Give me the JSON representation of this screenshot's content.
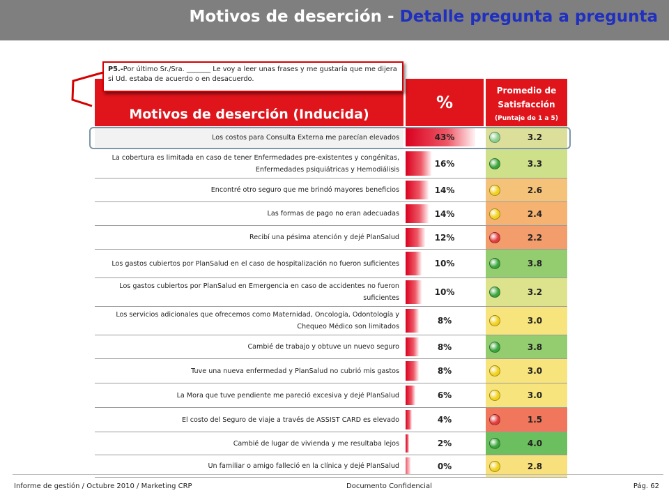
{
  "title": {
    "main": "Motivos de deserción",
    "separator": " - ",
    "sub": "Detalle pregunta a pregunta"
  },
  "callout": {
    "code": "P5.-",
    "text": "Por último Sr./Sra. _______ Le voy a leer unas frases y me gustaría que me dijera si Ud. estaba de acuerdo o en desacuerdo."
  },
  "table": {
    "header_label": "Motivos de deserción (Inducida)",
    "header_pct": "%",
    "header_avg": "Promedio de Satisfacción",
    "header_avg_scale": "(Puntaje de 1 a 5)"
  },
  "colors": {
    "header": "#e0141b",
    "light_green": "#cfe09a",
    "mid_green": "#dcdf8c",
    "green": "#8fcc6e",
    "orange": "#f5b66e",
    "salmon": "#f39b6b",
    "red": "#f0765c",
    "yellow": "#f8e27b",
    "dot_green": "#3aa53a",
    "dot_yellow": "#f1d11c",
    "dot_red": "#e23b3b",
    "dot_light_green": "#8ccf8c"
  },
  "chart_data": {
    "type": "table",
    "rows": [
      {
        "label": "Los costos para Consulta Externa me parecían elevados",
        "pct": "43%",
        "pct_value": 43,
        "avg": "3.2",
        "bg": "#dcdf9a",
        "dot": "#8ccf8c",
        "dot_icon": "light-green-circle-icon",
        "height": 33
      },
      {
        "label": "La cobertura es limitada en caso de tener Enfermedades pre-existentes y congénitas, Enfermedades psiquiátricas y Hemodiálisis",
        "pct": "16%",
        "pct_value": 16,
        "avg": "3.3",
        "bg": "#cfe08a",
        "dot": "#3aa53a",
        "dot_icon": "green-circle-icon",
        "height": 42
      },
      {
        "label": "Encontré otro seguro que me brindó mayores beneficios",
        "pct": "14%",
        "pct_value": 14,
        "avg": "2.6",
        "bg": "#f5c27a",
        "dot": "#f1d11c",
        "dot_icon": "yellow-circle-icon",
        "height": 34
      },
      {
        "label": "Las formas de pago no eran adecuadas",
        "pct": "14%",
        "pct_value": 14,
        "avg": "2.4",
        "bg": "#f5b271",
        "dot": "#f1d11c",
        "dot_icon": "yellow-circle-icon",
        "height": 34
      },
      {
        "label": "Recibí una pésima atención y dejé PlanSalud",
        "pct": "12%",
        "pct_value": 12,
        "avg": "2.2",
        "bg": "#f39c6c",
        "dot": "#e23b3b",
        "dot_icon": "red-circle-icon",
        "height": 34
      },
      {
        "label": "Los gastos cubiertos por PlanSalud en el caso de hospitalización no fueron suficientes",
        "pct": "10%",
        "pct_value": 10,
        "avg": "3.8",
        "bg": "#93cd6f",
        "dot": "#3aa53a",
        "dot_icon": "green-circle-icon",
        "height": 41
      },
      {
        "label": "Los gastos cubiertos por PlanSalud en Emergencia en caso de accidentes no fueron suficientes",
        "pct": "10%",
        "pct_value": 10,
        "avg": "3.2",
        "bg": "#dde28d",
        "dot": "#3aa53a",
        "dot_icon": "green-circle-icon",
        "height": 41
      },
      {
        "label": "Los servicios adicionales que ofrecemos como Maternidad, Oncología, Odontología y Chequeo Médico son limitados",
        "pct": "8%",
        "pct_value": 8,
        "avg": "3.0",
        "bg": "#f8e47c",
        "dot": "#f1d11c",
        "dot_icon": "yellow-circle-icon",
        "height": 41
      },
      {
        "label": "Cambié de trabajo y obtuve un nuevo seguro",
        "pct": "8%",
        "pct_value": 8,
        "avg": "3.8",
        "bg": "#93cd6f",
        "dot": "#3aa53a",
        "dot_icon": "green-circle-icon",
        "height": 34
      },
      {
        "label": "Tuve una nueva enfermedad y PlanSalud no cubrió mis gastos",
        "pct": "8%",
        "pct_value": 8,
        "avg": "3.0",
        "bg": "#f8e47c",
        "dot": "#f1d11c",
        "dot_icon": "yellow-circle-icon",
        "height": 35
      },
      {
        "label": "La Mora que tuve pendiente me pareció excesiva y dejé PlanSalud",
        "pct": "6%",
        "pct_value": 6,
        "avg": "3.0",
        "bg": "#f8e47c",
        "dot": "#f1d11c",
        "dot_icon": "yellow-circle-icon",
        "height": 35
      },
      {
        "label": "El costo del Seguro de viaje a través de ASSIST CARD es elevado",
        "pct": "4%",
        "pct_value": 4,
        "avg": "1.5",
        "bg": "#f0775c",
        "dot": "#e23b3b",
        "dot_icon": "red-circle-icon",
        "height": 35
      },
      {
        "label": "Cambié de lugar de vivienda y me resultaba lejos",
        "pct": "2%",
        "pct_value": 2,
        "avg": "4.0",
        "bg": "#6cbf5e",
        "dot": "#3aa53a",
        "dot_icon": "green-circle-icon",
        "height": 33
      },
      {
        "label": "Un familiar o amigo falleció en la clínica y dejé PlanSalud",
        "pct": "0%",
        "pct_value": 0,
        "avg": "2.8",
        "bg": "#f8e07c",
        "dot": "#f1d11c",
        "dot_icon": "yellow-circle-icon",
        "height": 32
      }
    ]
  },
  "footer": {
    "left": "Informe de gestión / Octubre 2010 / Marketing CRP",
    "middle": "Documento Confidencial",
    "right": "Pág. 62"
  }
}
